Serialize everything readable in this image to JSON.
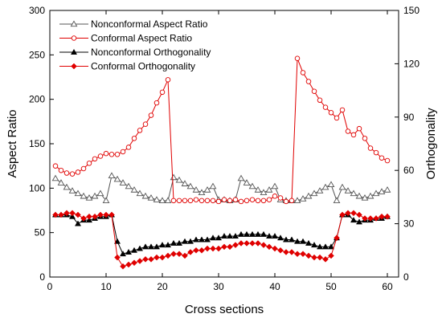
{
  "chart_data": {
    "type": "line",
    "xlabel": "Cross sections",
    "ylabel_left": "Aspect Ratio",
    "ylabel_right": "Orthogonality",
    "xlim": [
      0,
      62
    ],
    "ylim_left": [
      0,
      300
    ],
    "ylim_right": [
      0,
      150
    ],
    "xticks": [
      0,
      10,
      20,
      30,
      40,
      50,
      60
    ],
    "yticks_left": [
      0,
      50,
      100,
      150,
      200,
      250,
      300
    ],
    "yticks_right": [
      0,
      30,
      60,
      90,
      120,
      150
    ],
    "legend_position": "top-left",
    "grid": false,
    "x": [
      1,
      2,
      3,
      4,
      5,
      6,
      7,
      8,
      9,
      10,
      11,
      12,
      13,
      14,
      15,
      16,
      17,
      18,
      19,
      20,
      21,
      22,
      23,
      24,
      25,
      26,
      27,
      28,
      29,
      30,
      31,
      32,
      33,
      34,
      35,
      36,
      37,
      38,
      39,
      40,
      41,
      42,
      43,
      44,
      45,
      46,
      47,
      48,
      49,
      50,
      51,
      52,
      53,
      54,
      55,
      56,
      57,
      58,
      59,
      60
    ],
    "series": [
      {
        "name": "Nonconformal Aspect Ratio",
        "axis": "left",
        "color": "#555555",
        "marker": "open-triangle",
        "values": [
          111,
          106,
          101,
          97,
          94,
          91,
          89,
          91,
          94,
          86,
          114,
          110,
          106,
          102,
          98,
          94,
          91,
          89,
          87,
          86,
          86,
          112,
          109,
          105,
          102,
          98,
          95,
          98,
          102,
          87,
          87,
          86,
          87,
          111,
          106,
          102,
          98,
          95,
          98,
          102,
          87,
          86,
          86,
          86,
          88,
          91,
          94,
          97,
          101,
          104,
          86,
          101,
          97,
          94,
          91,
          89,
          91,
          94,
          96,
          98
        ]
      },
      {
        "name": "Conformal  Aspect Ratio",
        "axis": "left",
        "color": "#e00000",
        "marker": "open-circle",
        "values": [
          125,
          120,
          117,
          116,
          118,
          122,
          128,
          133,
          136,
          139,
          138,
          138,
          141,
          146,
          156,
          165,
          172,
          182,
          196,
          208,
          222,
          86,
          86,
          86,
          86,
          87,
          86,
          86,
          86,
          85,
          87,
          86,
          87,
          85,
          86,
          87,
          86,
          86,
          87,
          91,
          89,
          85,
          86,
          246,
          230,
          220,
          209,
          199,
          191,
          185,
          179,
          188,
          164,
          160,
          167,
          156,
          145,
          140,
          134,
          131
        ]
      },
      {
        "name": "Nonconformal Orthogonality",
        "axis": "right",
        "color": "#000000",
        "marker": "filled-triangle",
        "values": [
          35,
          35,
          35,
          34,
          30,
          32,
          32,
          33,
          34,
          34,
          35,
          20,
          13,
          14,
          15,
          16,
          17,
          17,
          17,
          18,
          18,
          19,
          19,
          20,
          20,
          21,
          21,
          21,
          22,
          22,
          23,
          23,
          23,
          24,
          24,
          24,
          24,
          24,
          23,
          23,
          22,
          21,
          21,
          20,
          20,
          19,
          18,
          17,
          17,
          17,
          22,
          35,
          35,
          32,
          31,
          32,
          32,
          33,
          33,
          34
        ]
      },
      {
        "name": "Conformal  Orthogonality",
        "axis": "right",
        "color": "#e00000",
        "marker": "filled-diamond",
        "values": [
          35,
          35,
          36,
          36,
          35,
          33,
          34,
          34,
          35,
          35,
          35,
          11,
          6,
          7,
          8,
          9,
          10,
          10,
          11,
          11,
          12,
          13,
          13,
          12,
          14,
          15,
          15,
          16,
          16,
          16,
          17,
          17,
          18,
          19,
          19,
          19,
          19,
          18,
          17,
          16,
          15,
          14,
          14,
          13,
          13,
          12,
          11,
          11,
          10,
          12,
          22,
          35,
          36,
          36,
          35,
          33,
          33,
          33,
          34,
          34
        ]
      }
    ]
  }
}
